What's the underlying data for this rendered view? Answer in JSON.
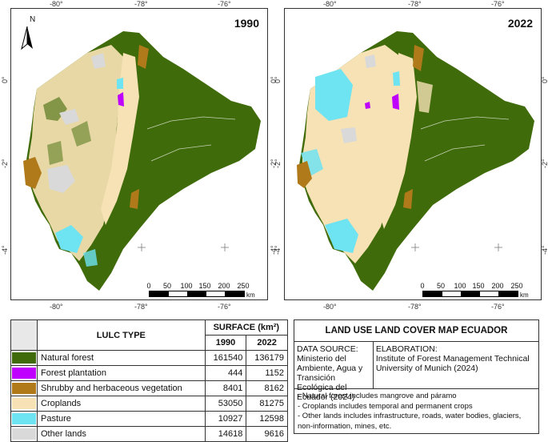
{
  "maps": [
    {
      "year": "1990",
      "lon_ticks_top": [
        "-80°",
        "-78°",
        "-76°"
      ],
      "lon_ticks_bottom": [
        "-80°",
        "-78°",
        "-76°"
      ],
      "lat_ticks_left": [
        "0°",
        "-2°",
        "-4°"
      ],
      "lat_ticks_right": [
        "0°",
        "-2°",
        "-4°"
      ]
    },
    {
      "year": "2022",
      "lon_ticks_top": [
        "-80°",
        "-78°",
        "-76°"
      ],
      "lon_ticks_bottom": [
        "-80°",
        "-78°",
        "-76°"
      ],
      "lat_ticks_left": [
        "0°",
        "-2°",
        "-4°"
      ],
      "lat_ticks_right": [
        "0°",
        "-2°",
        "-4°"
      ]
    }
  ],
  "north_arrow": {
    "label": "N",
    "icon": "north-arrow-icon"
  },
  "scalebar": {
    "labels": [
      "0",
      "50",
      "100",
      "150",
      "200",
      "250"
    ],
    "unit": "km"
  },
  "legend": {
    "col_lulc": "LULC TYPE",
    "col_surface": "SURFACE (km²)",
    "col_1990": "1990",
    "col_2022": "2022",
    "rows": [
      {
        "label": "Natural forest",
        "color": "#3f6b0a",
        "v1990": "161540",
        "v2022": "136179"
      },
      {
        "label": "Forest plantation",
        "color": "#c000ff",
        "v1990": "444",
        "v2022": "1152"
      },
      {
        "label": "Shrubby and herbaceous vegetation",
        "color": "#b07a1a",
        "v1990": "8401",
        "v2022": "8162"
      },
      {
        "label": "Croplands",
        "color": "#f6e2b4",
        "v1990": "53050",
        "v2022": "81275"
      },
      {
        "label": "Pasture",
        "color": "#6ee3f2",
        "v1990": "10927",
        "v2022": "12598"
      },
      {
        "label": "Other lands",
        "color": "#d9d9d9",
        "v1990": "14618",
        "v2022": "9616"
      }
    ]
  },
  "info": {
    "title": "LAND USE LAND COVER MAP ECUADOR",
    "source_label": "DATA SOURCE:",
    "source_text": "Ministerio del Ambiente, Agua y Transición Ecológica del Ecuador (2024)",
    "elab_label": "ELABORATION:",
    "elab_text": "Institute of Forest Management Technical University of Munich (2024)",
    "notes": [
      "- Natural forest includes mangrove and páramo",
      "- Croplands includes temporal and permanent crops",
      "- Other lands includes infrastructure, roads, water bodies, glaciers, non-information, mines, etc."
    ]
  }
}
